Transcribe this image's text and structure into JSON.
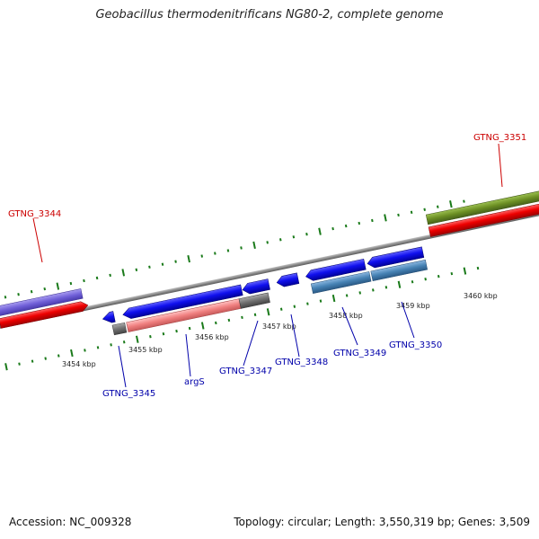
{
  "title": "Geobacillus thermodenitrificans NG80-2, complete genome",
  "footer": {
    "accession": "Accession: NC_009328",
    "topology": "Topology: circular; Length: 3,550,319 bp; Genes: 3,509"
  },
  "colors": {
    "tick": "#1a7a1a",
    "top_label": "#cc0000",
    "bottom_label": "#0000aa"
  },
  "scale_labels": [
    "3454 kbp",
    "3455 kbp",
    "3456 kbp",
    "3457 kbp",
    "3458 kbp",
    "3459 kbp",
    "3460 kbp"
  ],
  "gene_labels_top": [
    "GTNG_3344",
    "GTNG_3351"
  ],
  "gene_labels_bottom": [
    "GTNG_3345",
    "argS",
    "GTNG_3347",
    "GTNG_3348",
    "GTNG_3349",
    "GTNG_3350"
  ]
}
